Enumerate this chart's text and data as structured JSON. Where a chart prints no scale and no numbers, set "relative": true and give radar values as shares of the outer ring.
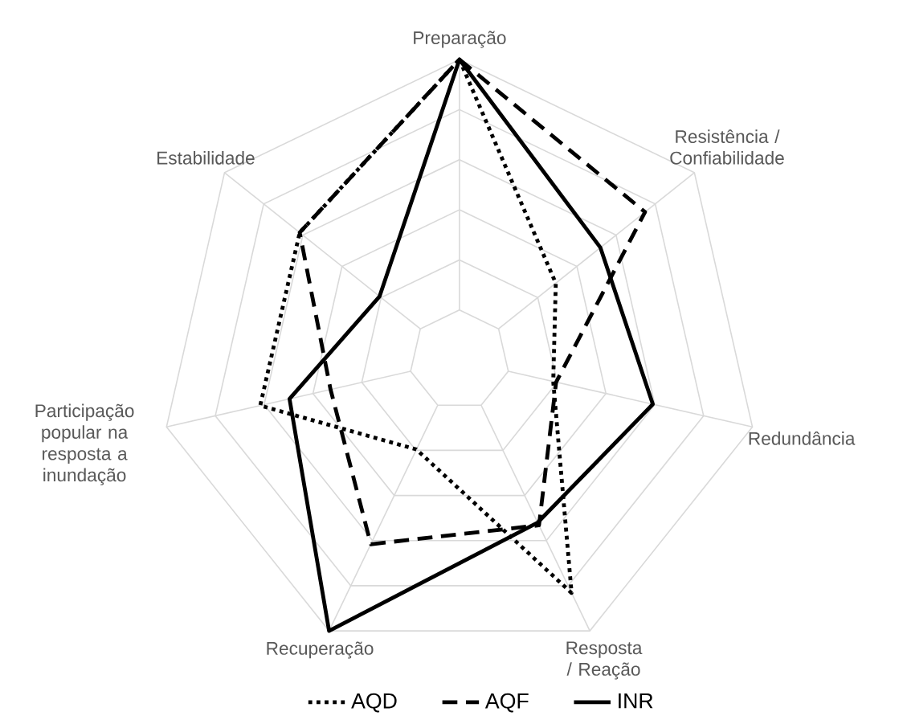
{
  "chart_data": {
    "type": "radar",
    "relative": true,
    "grid": true,
    "legend": "bottom",
    "categories": [
      "Preparação",
      "Resistência / Confiabilidade",
      "Redundância",
      "Resposta / Reação",
      "Recuperação",
      "Participação popular na resposta a inundação",
      "Estabilidade"
    ],
    "series": [
      {
        "name": "AQD",
        "color": "#000000",
        "line_style": "dotted",
        "values": [
          1.0,
          0.41,
          0.32,
          0.86,
          0.33,
          0.68,
          0.68
        ]
      },
      {
        "name": "AQF",
        "color": "#000000",
        "line_style": "dashed",
        "values": [
          1.0,
          0.79,
          0.33,
          0.61,
          0.68,
          0.44,
          0.68
        ]
      },
      {
        "name": "INR",
        "color": "#000000",
        "line_style": "solid",
        "values": [
          1.0,
          0.6,
          0.66,
          0.6,
          1.0,
          0.58,
          0.34
        ]
      }
    ]
  }
}
